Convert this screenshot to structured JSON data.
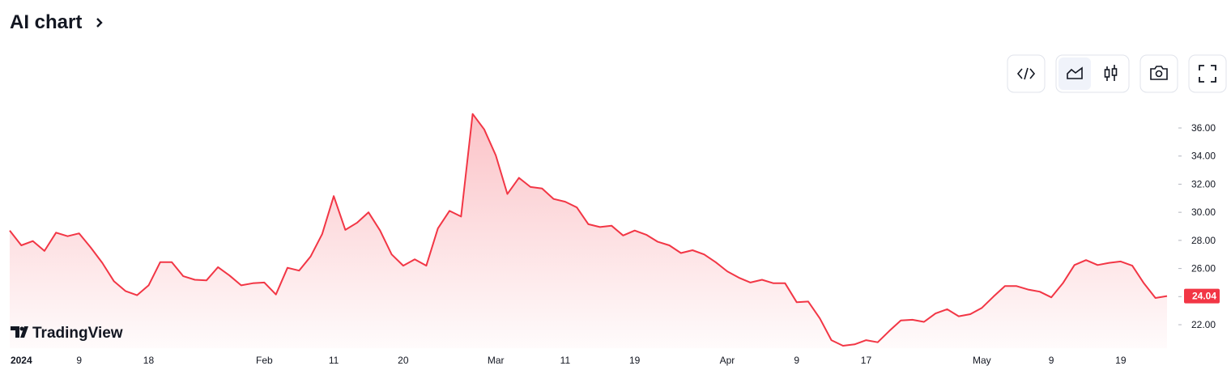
{
  "header": {
    "title": "AI chart"
  },
  "logo": "TradingView",
  "chart_data": {
    "type": "area",
    "color": "#f23645",
    "categories": [
      null,
      "2024",
      null,
      null,
      null,
      null,
      "9",
      null,
      null,
      null,
      null,
      null,
      "18",
      null,
      null,
      null,
      null,
      null,
      null,
      null,
      null,
      null,
      "Feb",
      null,
      null,
      null,
      null,
      null,
      "11",
      null,
      null,
      null,
      null,
      null,
      "20",
      null,
      null,
      null,
      null,
      null,
      null,
      null,
      "Mar",
      null,
      null,
      null,
      null,
      null,
      "11",
      null,
      null,
      null,
      null,
      null,
      "19",
      null,
      null,
      null,
      null,
      null,
      null,
      null,
      "Apr",
      null,
      null,
      null,
      null,
      null,
      "9",
      null,
      null,
      null,
      null,
      null,
      "17",
      null,
      null,
      null,
      null,
      null,
      null,
      null,
      null,
      null,
      "May",
      null,
      null,
      null,
      null,
      null,
      "9",
      null,
      null,
      null,
      null,
      null,
      "19",
      null,
      null,
      null,
      null
    ],
    "values": [
      28.7,
      27.65,
      27.95,
      27.25,
      28.55,
      28.3,
      28.5,
      27.5,
      26.4,
      25.1,
      24.4,
      24.1,
      24.8,
      26.45,
      26.45,
      25.45,
      25.2,
      25.15,
      26.1,
      25.5,
      24.8,
      24.95,
      25.0,
      24.15,
      26.05,
      25.85,
      26.85,
      28.45,
      31.15,
      28.75,
      29.25,
      30.0,
      28.7,
      27.0,
      26.2,
      26.65,
      26.2,
      28.85,
      30.1,
      29.7,
      37.0,
      35.9,
      34.05,
      31.3,
      32.45,
      31.8,
      31.7,
      30.95,
      30.75,
      30.35,
      29.15,
      28.95,
      29.05,
      28.35,
      28.7,
      28.4,
      27.9,
      27.65,
      27.1,
      27.3,
      27.0,
      26.45,
      25.8,
      25.35,
      25.0,
      25.2,
      24.95,
      24.95,
      23.6,
      23.65,
      22.45,
      20.9,
      20.5,
      20.6,
      20.9,
      20.75,
      21.55,
      22.3,
      22.35,
      22.2,
      22.8,
      23.1,
      22.6,
      22.75,
      23.2,
      24.0,
      24.75,
      24.75,
      24.5,
      24.35,
      23.95,
      24.95,
      26.25,
      26.6,
      26.25,
      26.4,
      26.5,
      26.2,
      24.95,
      23.9,
      24.04
    ],
    "price_label": "24.04",
    "ylim": [
      20.33,
      37.73
    ],
    "yticks": [
      {
        "value": 22,
        "label": "22.00"
      },
      {
        "value": 24,
        "label": "24.00"
      },
      {
        "value": 26,
        "label": "26.00"
      },
      {
        "value": 28,
        "label": "28.00"
      },
      {
        "value": 30,
        "label": "30.00"
      },
      {
        "value": 32,
        "label": "32.00"
      },
      {
        "value": 34,
        "label": "34.00"
      },
      {
        "value": 36,
        "label": "36.00"
      }
    ]
  }
}
